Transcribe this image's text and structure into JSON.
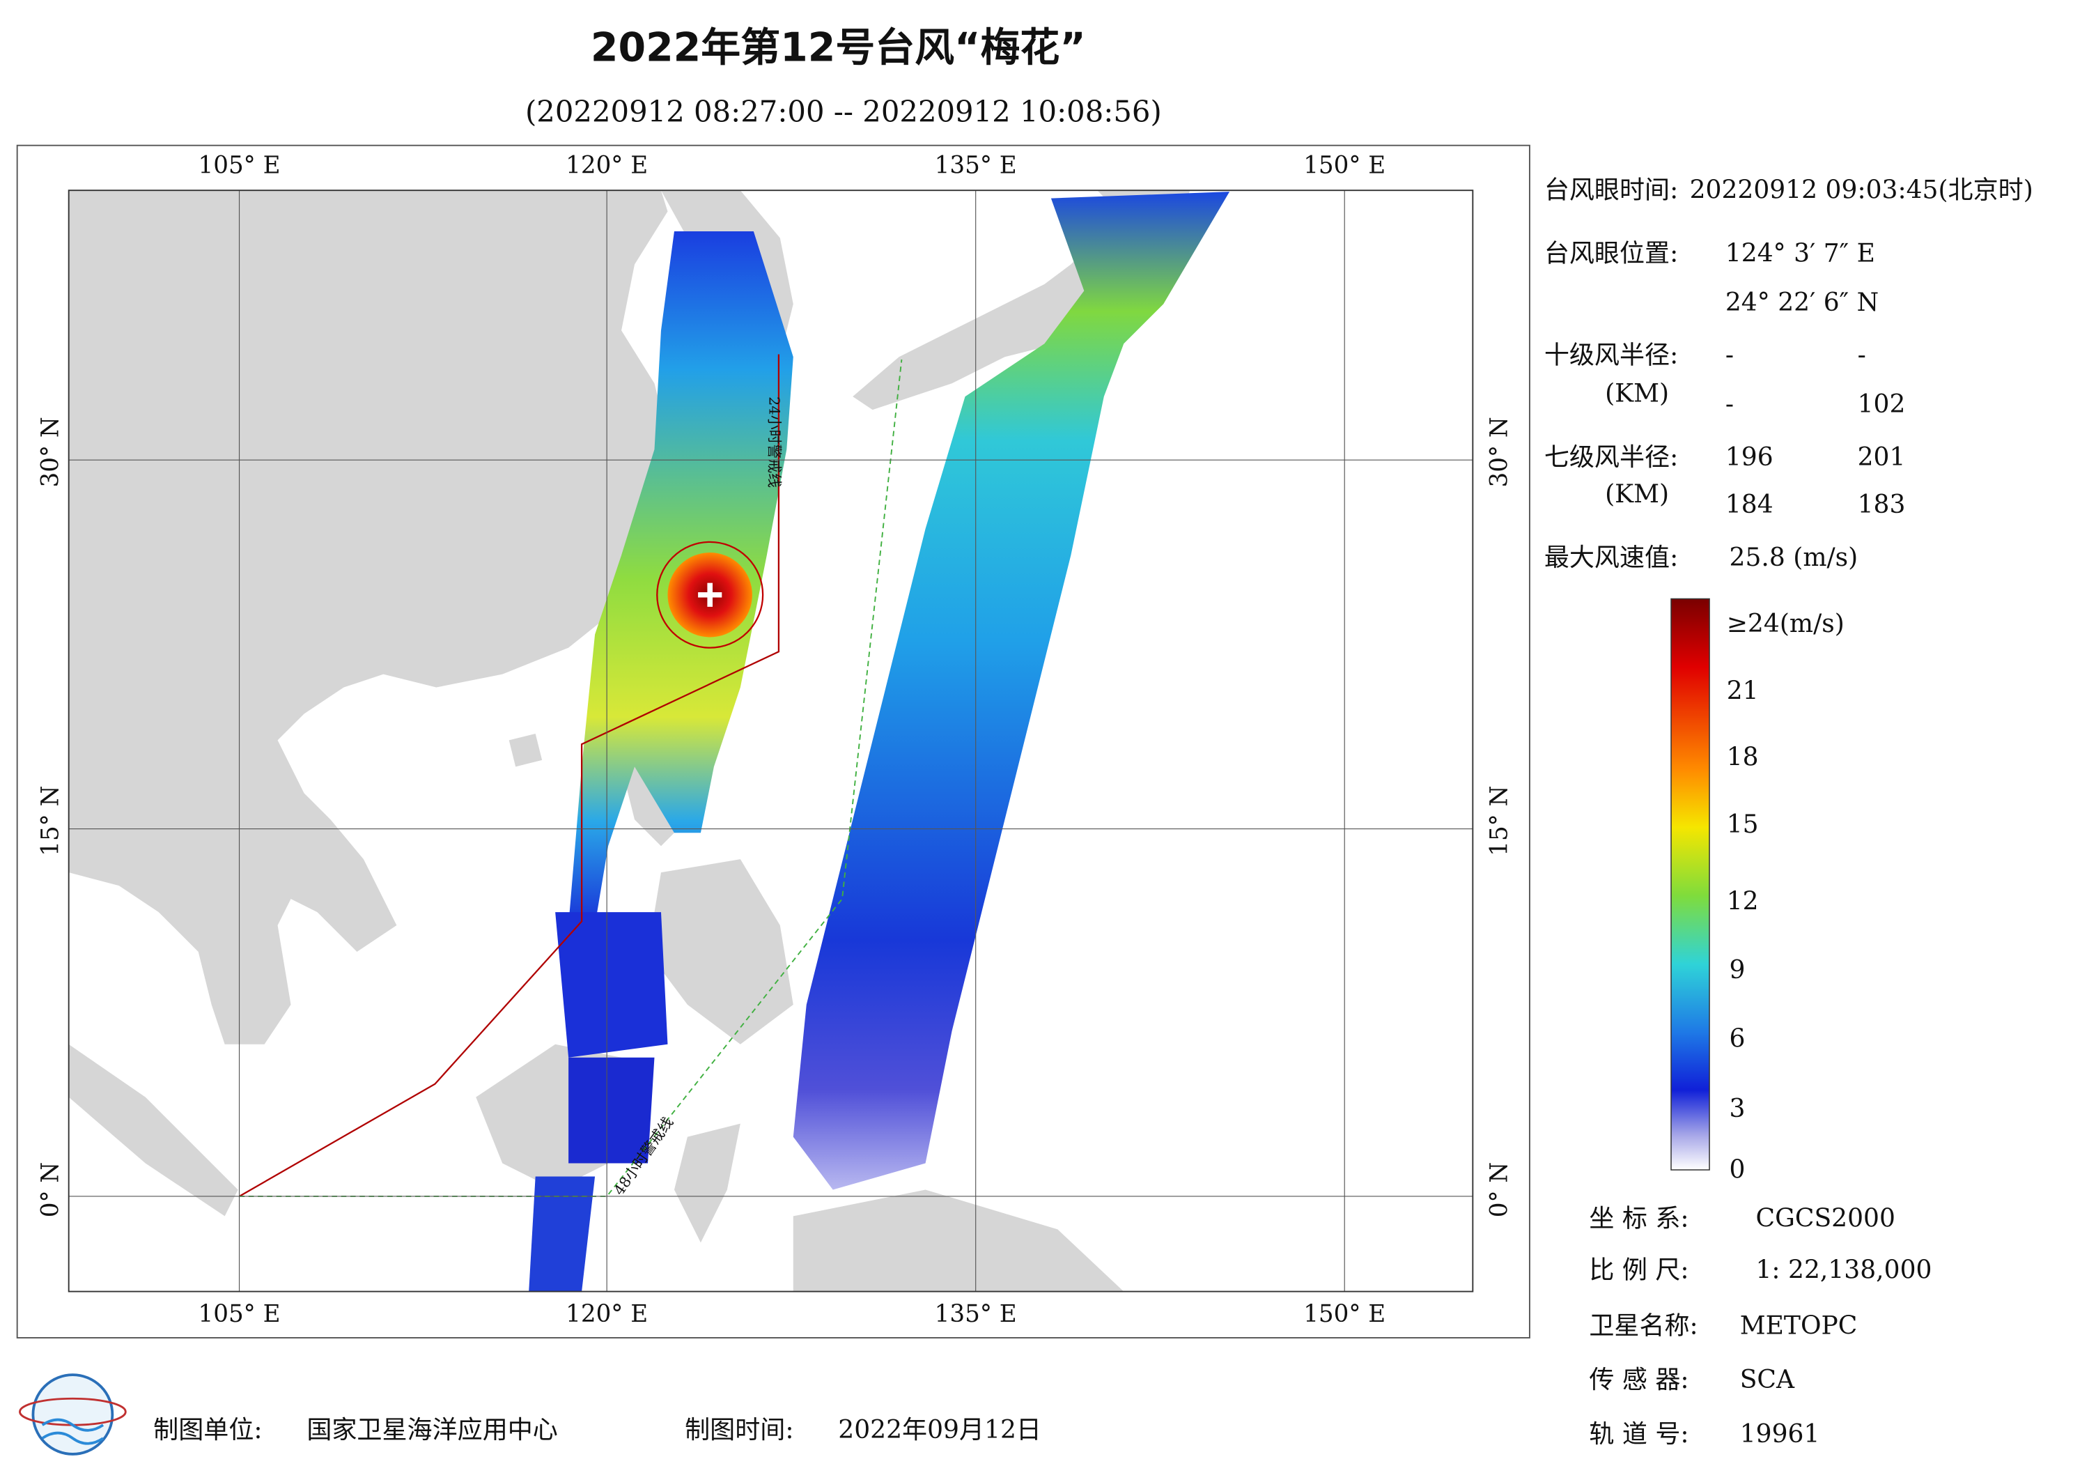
{
  "header": {
    "title": "2022年第12号台风“梅花”",
    "subtitle": "(20220912 08:27:00 -- 20220912 10:08:56)"
  },
  "map": {
    "lon_labels": [
      "105° E",
      "120° E",
      "135° E",
      "150° E"
    ],
    "lat_labels": [
      "30° N",
      "15° N",
      "0° N"
    ],
    "annotations": [
      "24小时警戒线",
      "48小时警戒线"
    ]
  },
  "info": {
    "eye_time": {
      "label": "台风眼时间:",
      "value": "20220912 09:03:45(北京时)"
    },
    "eye_position": {
      "label": "台风眼位置:",
      "lon": "124° 3′ 7″ E",
      "lat": "24° 22′ 6″ N"
    },
    "r10": {
      "label": "十级风半径:",
      "unit": "(KM)",
      "values": [
        "-",
        "-",
        "-",
        "102"
      ]
    },
    "r7": {
      "label": "七级风半径:",
      "unit": "(KM)",
      "values": [
        "196",
        "201",
        "184",
        "183"
      ]
    },
    "max_wind": {
      "label": "最大风速值:",
      "value": "25.8  (m/s)"
    }
  },
  "colorbar": {
    "labels": [
      "≥24(m/s)",
      "21",
      "18",
      "15",
      "12",
      "9",
      "6",
      "3",
      "0"
    ]
  },
  "meta": [
    {
      "label": "坐 标 系:",
      "value": "CGCS2000"
    },
    {
      "label": "比 例 尺:",
      "value": "1: 22,138,000"
    },
    {
      "label": "卫星名称:",
      "value": "METOPC"
    },
    {
      "label": "传 感 器:",
      "value": "SCA"
    },
    {
      "label": "轨 道 号:",
      "value": "19961"
    }
  ],
  "footer": {
    "producer": {
      "label": "制图单位:",
      "value": "国家卫星海洋应用中心"
    },
    "time": {
      "label": "制图时间:",
      "value": "2022年09月12日"
    }
  }
}
